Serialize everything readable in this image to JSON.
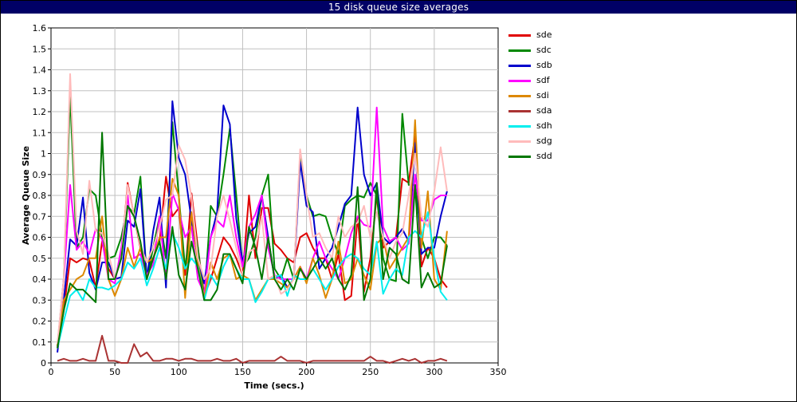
{
  "window": {
    "title": "15 disk queue size averages"
  },
  "colors": {
    "titlebar": "#000066",
    "grid": "#c0c0c0",
    "axis": "#000000"
  },
  "chart_data": {
    "type": "line",
    "title": "15 disk queue size averages",
    "xlabel": "Time (secs.)",
    "ylabel": "Average Queue Size",
    "xlim": [
      0,
      350
    ],
    "ylim": [
      0,
      1.6
    ],
    "xticks": [
      0,
      50,
      100,
      150,
      200,
      250,
      300,
      350
    ],
    "yticks": [
      0,
      0.1,
      0.2,
      0.3,
      0.4,
      0.5,
      0.6,
      0.7,
      0.8,
      0.9,
      1,
      1.1,
      1.2,
      1.3,
      1.4,
      1.5,
      1.6
    ],
    "grid": true,
    "legend_position": "right",
    "x": [
      5,
      10,
      15,
      20,
      25,
      30,
      35,
      40,
      45,
      50,
      55,
      60,
      65,
      70,
      75,
      80,
      85,
      90,
      95,
      100,
      105,
      110,
      115,
      120,
      125,
      130,
      135,
      140,
      145,
      150,
      155,
      160,
      165,
      170,
      175,
      180,
      185,
      190,
      195,
      200,
      205,
      210,
      215,
      220,
      225,
      230,
      235,
      240,
      245,
      250,
      255,
      260,
      265,
      270,
      275,
      280,
      285,
      290,
      295,
      300,
      305,
      310
    ],
    "series": [
      {
        "name": "sde",
        "color": "#e00000",
        "values": [
          0.08,
          0.25,
          0.5,
          0.48,
          0.5,
          0.49,
          0.36,
          0.58,
          0.45,
          0.4,
          0.5,
          0.86,
          0.7,
          0.55,
          0.42,
          0.5,
          0.58,
          0.89,
          0.7,
          0.74,
          0.42,
          0.81,
          0.55,
          0.32,
          0.4,
          0.5,
          0.6,
          0.56,
          0.5,
          0.42,
          0.8,
          0.5,
          0.74,
          0.74,
          0.57,
          0.54,
          0.5,
          0.48,
          0.6,
          0.62,
          0.55,
          0.5,
          0.5,
          0.4,
          0.52,
          0.3,
          0.32,
          0.7,
          0.34,
          0.5,
          0.8,
          0.55,
          0.58,
          0.6,
          0.88,
          0.86,
          1.09,
          0.46,
          0.55,
          0.5,
          0.4,
          0.36
        ]
      },
      {
        "name": "sdc",
        "color": "#008800",
        "values": [
          0.08,
          0.4,
          1.28,
          0.55,
          0.6,
          0.83,
          0.8,
          0.6,
          0.5,
          0.51,
          0.6,
          0.75,
          0.71,
          0.89,
          0.4,
          0.55,
          0.7,
          0.5,
          1.15,
          0.8,
          0.45,
          0.69,
          0.55,
          0.3,
          0.75,
          0.7,
          0.9,
          1.12,
          0.8,
          0.46,
          0.5,
          0.6,
          0.8,
          0.9,
          0.45,
          0.4,
          0.5,
          0.4,
          0.99,
          0.8,
          0.7,
          0.71,
          0.7,
          0.6,
          0.52,
          0.75,
          0.78,
          0.8,
          0.79,
          0.86,
          0.8,
          0.5,
          0.4,
          0.39,
          1.19,
          0.85,
          0.85,
          0.6,
          0.5,
          0.6,
          0.6,
          0.56
        ]
      },
      {
        "name": "sdb",
        "color": "#0000cc",
        "values": [
          0.05,
          0.3,
          0.59,
          0.56,
          0.79,
          0.43,
          0.35,
          0.48,
          0.48,
          0.4,
          0.41,
          0.68,
          0.65,
          0.83,
          0.4,
          0.63,
          0.79,
          0.36,
          1.25,
          0.98,
          0.9,
          0.68,
          0.5,
          0.38,
          0.6,
          0.72,
          1.23,
          1.14,
          0.69,
          0.48,
          0.62,
          0.65,
          0.8,
          0.6,
          0.4,
          0.42,
          0.36,
          0.4,
          0.96,
          0.75,
          0.72,
          0.45,
          0.5,
          0.55,
          0.65,
          0.76,
          0.8,
          1.22,
          0.9,
          0.8,
          0.86,
          0.6,
          0.57,
          0.6,
          0.64,
          0.58,
          1.05,
          0.52,
          0.55,
          0.55,
          0.7,
          0.82
        ]
      },
      {
        "name": "sdf",
        "color": "#ff00ff",
        "values": [
          0.07,
          0.4,
          0.85,
          0.54,
          0.58,
          0.52,
          0.64,
          0.59,
          0.4,
          0.38,
          0.55,
          0.8,
          0.5,
          0.52,
          0.42,
          0.47,
          0.7,
          0.4,
          0.81,
          0.73,
          0.6,
          0.65,
          0.4,
          0.33,
          0.6,
          0.68,
          0.65,
          0.8,
          0.6,
          0.46,
          0.65,
          0.71,
          0.8,
          0.55,
          0.42,
          0.4,
          0.4,
          0.4,
          0.46,
          0.4,
          0.5,
          0.58,
          0.5,
          0.45,
          0.4,
          0.5,
          0.62,
          0.7,
          0.66,
          0.65,
          1.22,
          0.65,
          0.58,
          0.6,
          0.54,
          0.57,
          0.9,
          0.68,
          0.68,
          0.78,
          0.8,
          0.8
        ]
      },
      {
        "name": "sdi",
        "color": "#dd8800",
        "values": [
          0.08,
          0.3,
          0.35,
          0.4,
          0.42,
          0.5,
          0.5,
          0.7,
          0.4,
          0.32,
          0.4,
          0.55,
          0.46,
          0.55,
          0.48,
          0.5,
          0.6,
          0.6,
          0.88,
          0.8,
          0.31,
          0.72,
          0.48,
          0.31,
          0.48,
          0.4,
          0.5,
          0.52,
          0.4,
          0.42,
          0.4,
          0.3,
          0.35,
          0.4,
          0.4,
          0.38,
          0.36,
          0.4,
          0.46,
          0.38,
          0.5,
          0.42,
          0.31,
          0.4,
          0.58,
          0.38,
          0.4,
          0.5,
          0.42,
          0.35,
          0.57,
          0.6,
          0.45,
          0.5,
          0.55,
          0.6,
          1.16,
          0.55,
          0.82,
          0.4,
          0.35,
          0.63
        ]
      },
      {
        "name": "sda",
        "color": "#aa3333",
        "values": [
          0.01,
          0.02,
          0.01,
          0.01,
          0.02,
          0.01,
          0.01,
          0.13,
          0.01,
          0.01,
          0.0,
          0.0,
          0.09,
          0.03,
          0.05,
          0.01,
          0.01,
          0.02,
          0.02,
          0.01,
          0.02,
          0.02,
          0.01,
          0.01,
          0.01,
          0.02,
          0.01,
          0.01,
          0.02,
          0.0,
          0.01,
          0.01,
          0.01,
          0.01,
          0.01,
          0.03,
          0.01,
          0.01,
          0.01,
          0.0,
          0.01,
          0.01,
          0.01,
          0.01,
          0.01,
          0.01,
          0.01,
          0.01,
          0.01,
          0.03,
          0.01,
          0.01,
          0.0,
          0.01,
          0.02,
          0.01,
          0.02,
          0.0,
          0.01,
          0.01,
          0.02,
          0.01
        ]
      },
      {
        "name": "sdh",
        "color": "#00eeee",
        "values": [
          0.07,
          0.2,
          0.32,
          0.35,
          0.3,
          0.4,
          0.36,
          0.36,
          0.35,
          0.37,
          0.4,
          0.48,
          0.45,
          0.5,
          0.37,
          0.45,
          0.55,
          0.45,
          0.62,
          0.55,
          0.45,
          0.5,
          0.46,
          0.3,
          0.42,
          0.37,
          0.46,
          0.52,
          0.45,
          0.4,
          0.4,
          0.29,
          0.34,
          0.4,
          0.41,
          0.42,
          0.32,
          0.42,
          0.4,
          0.4,
          0.45,
          0.4,
          0.35,
          0.4,
          0.46,
          0.5,
          0.52,
          0.5,
          0.45,
          0.42,
          0.58,
          0.33,
          0.4,
          0.45,
          0.42,
          0.6,
          0.63,
          0.6,
          0.72,
          0.5,
          0.34,
          0.3
        ]
      },
      {
        "name": "sdg",
        "color": "#ffbbbb",
        "values": [
          0.09,
          0.4,
          1.38,
          0.63,
          0.52,
          0.87,
          0.63,
          0.62,
          0.52,
          0.4,
          0.5,
          0.85,
          0.7,
          0.56,
          0.48,
          0.55,
          0.65,
          0.78,
          0.8,
          1.04,
          0.97,
          0.79,
          0.5,
          0.4,
          0.45,
          0.7,
          0.8,
          0.68,
          0.55,
          0.42,
          0.53,
          0.55,
          0.7,
          0.4,
          0.42,
          0.33,
          0.35,
          0.4,
          1.02,
          0.8,
          0.6,
          0.62,
          0.55,
          0.5,
          0.7,
          0.6,
          0.65,
          0.67,
          0.75,
          0.6,
          0.72,
          0.6,
          0.5,
          0.58,
          0.62,
          0.8,
          1.0,
          0.7,
          0.65,
          0.82,
          1.03,
          0.82
        ]
      },
      {
        "name": "sdd",
        "color": "#007700",
        "values": [
          0.07,
          0.25,
          0.38,
          0.35,
          0.35,
          0.32,
          0.29,
          1.1,
          0.4,
          0.4,
          0.5,
          0.75,
          0.7,
          0.58,
          0.4,
          0.5,
          0.58,
          0.4,
          0.65,
          0.42,
          0.35,
          0.58,
          0.45,
          0.3,
          0.3,
          0.35,
          0.52,
          0.52,
          0.45,
          0.38,
          0.65,
          0.55,
          0.4,
          0.6,
          0.4,
          0.35,
          0.4,
          0.35,
          0.45,
          0.4,
          0.45,
          0.5,
          0.45,
          0.5,
          0.4,
          0.35,
          0.42,
          0.84,
          0.3,
          0.4,
          0.86,
          0.4,
          0.55,
          0.52,
          0.4,
          0.38,
          0.85,
          0.36,
          0.43,
          0.36,
          0.38,
          0.56
        ]
      }
    ]
  }
}
